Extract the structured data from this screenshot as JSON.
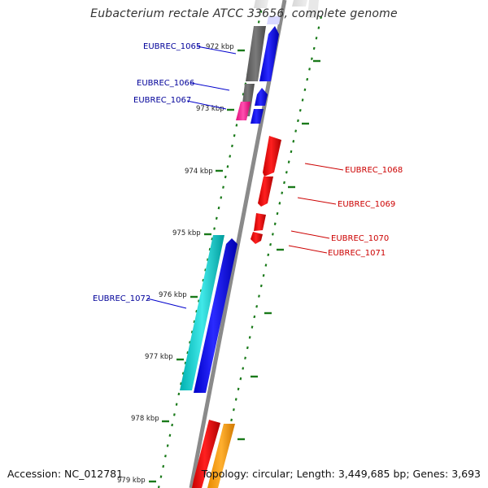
{
  "title": "Eubacterium rectale ATCC 33656, complete genome",
  "footer": {
    "accession": "Accession: NC_012781",
    "topology": "Topology: circular; Length: 3,449,685 bp; Genes: 3,693"
  },
  "tick_labels": [
    "972 kbp",
    "973 kbp",
    "974 kbp",
    "975 kbp",
    "976 kbp",
    "977 kbp",
    "978 kbp",
    "979 kbp"
  ],
  "genes_left": [
    "EUBREC_1065",
    "EUBREC_1066",
    "EUBREC_1067",
    "EUBREC_1072"
  ],
  "genes_right": [
    "EUBREC_1068",
    "EUBREC_1069",
    "EUBREC_1070",
    "EUBREC_1071"
  ],
  "colors": {
    "forward_strand": "#0000ee",
    "reverse_strand": "#ee0000",
    "label_left": "#000099",
    "label_right": "#cc0000",
    "ticks": "#1a7a1a",
    "backbone": "#888888",
    "cds_gray": "#666666",
    "cds_cyan": "#00c8c8",
    "cds_magenta": "#ff1493",
    "cds_orange": "#ff9900"
  }
}
